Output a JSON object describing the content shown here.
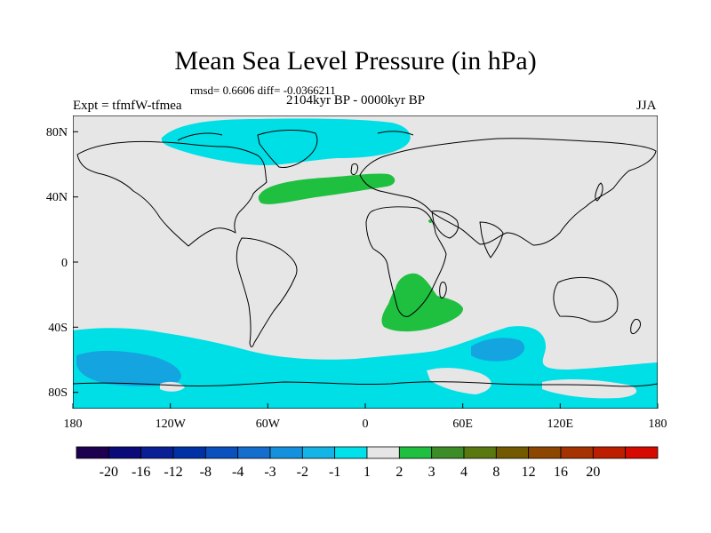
{
  "header": {
    "title": "Mean Sea Level Pressure (in hPa)",
    "stats": "rmsd= 0.6606 diff= -0.0366211",
    "experiment": "Expt = tfmfW-tfmea",
    "period": "2104kyr BP - 0000kyr BP",
    "season": "JJA"
  },
  "map": {
    "type": "filled-contour",
    "variable": "Mean Sea Level Pressure difference",
    "lon_range": [
      -180,
      180
    ],
    "lat_range": [
      -90,
      90
    ],
    "x_ticks": [
      "180",
      "120W",
      "60W",
      "0",
      "60E",
      "120E",
      "180"
    ],
    "y_ticks": [
      "80N",
      "40N",
      "0",
      "40S",
      "80S"
    ],
    "anomaly_regions": [
      {
        "name": "North Atlantic / Greenland low",
        "level": "-2 to -1",
        "color": "#00dfe6"
      },
      {
        "name": "Greenland core",
        "level": "-2 to -1",
        "color": "#00dfe6"
      },
      {
        "name": "Mid-Atlantic high",
        "level": "1 to 2",
        "color": "#1fbf3f"
      },
      {
        "name": "Southeast Africa high",
        "level": "1 to 2",
        "color": "#1fbf3f"
      },
      {
        "name": "Southern Ocean low",
        "level": "-2 to -1",
        "color": "#00dfe6"
      },
      {
        "name": "South Pacific core",
        "level": "-3 to -2",
        "color": "#14a5e0"
      },
      {
        "name": "Indian Ocean core",
        "level": "-3 to -2",
        "color": "#14a5e0"
      }
    ]
  },
  "colorbar": {
    "labels": [
      "-20",
      "-16",
      "-12",
      "-8",
      "-4",
      "-3",
      "-2",
      "-1",
      "1",
      "2",
      "3",
      "4",
      "8",
      "12",
      "16",
      "20"
    ],
    "colors": [
      "#1e0050",
      "#0a0a78",
      "#0a1e96",
      "#0032a5",
      "#0a50be",
      "#146ecd",
      "#1491dc",
      "#14b4e6",
      "#00e1eb",
      "#e6e6e6",
      "#1fbf3f",
      "#3c8c28",
      "#5a7810",
      "#735a00",
      "#8c4600",
      "#a53200",
      "#be1e00",
      "#d70a00"
    ]
  }
}
